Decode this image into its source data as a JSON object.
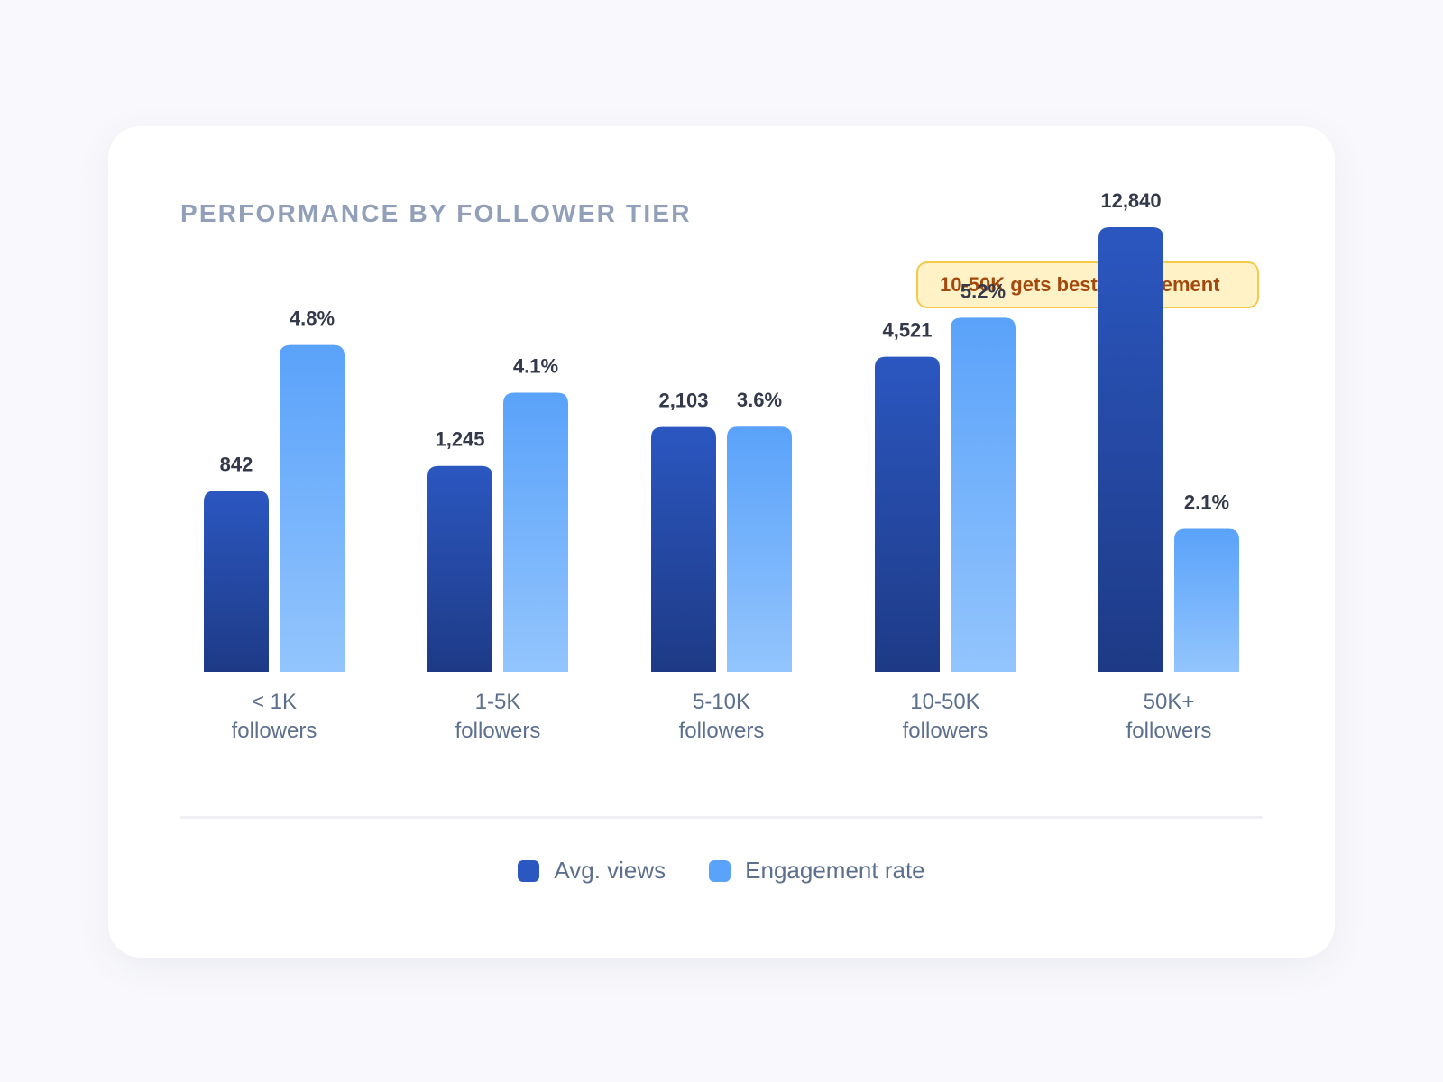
{
  "chart_data": {
    "type": "bar",
    "title": "PERFORMANCE BY FOLLOWER TIER",
    "categories": [
      [
        "< 1K",
        "followers"
      ],
      [
        "1-5K",
        "followers"
      ],
      [
        "5-10K",
        "followers"
      ],
      [
        "10-50K",
        "followers"
      ],
      [
        "50K+",
        "followers"
      ]
    ],
    "series": [
      {
        "name": "Avg. views",
        "values": [
          842,
          1245,
          2103,
          4521,
          12840
        ],
        "labels": [
          "842",
          "1,245",
          "2,103",
          "4,521",
          "12,840"
        ],
        "color_top": "#2b57c0",
        "color_bottom": "#1e3a86"
      },
      {
        "name": "Engagement rate",
        "values": [
          4.8,
          4.1,
          3.6,
          5.2,
          2.1
        ],
        "labels": [
          "4.8%",
          "4.1%",
          "3.6%",
          "5.2%",
          "2.1%"
        ],
        "color_top": "#5aa2fa",
        "color_bottom": "#93c5fd"
      }
    ],
    "annotation": "10-50K gets best engagement",
    "legend_position": "bottom-center",
    "grid": false
  }
}
